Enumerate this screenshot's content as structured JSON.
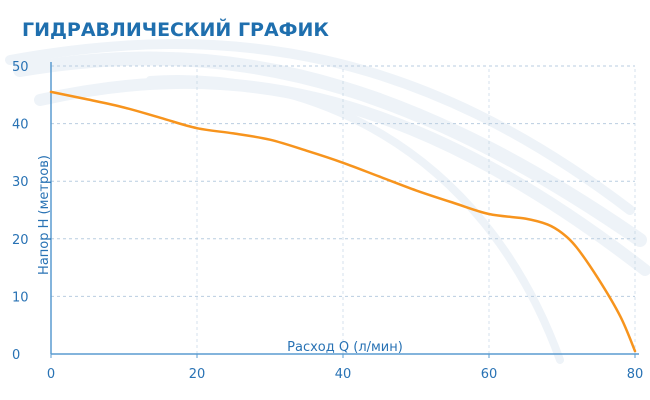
{
  "chart_data": {
    "type": "line",
    "title": "ГИДРАВЛИЧЕСКИЙ ГРАФИК",
    "xlabel": "Расход Q (л/мин)",
    "ylabel": "Напор H (метров)",
    "xlim": [
      0,
      80
    ],
    "ylim": [
      0,
      50
    ],
    "x_ticks": [
      0,
      20,
      40,
      60,
      80
    ],
    "y_ticks": [
      0,
      10,
      20,
      30,
      40,
      50
    ],
    "grid": "horizontal dashed",
    "series": [
      {
        "color": "#f7941d",
        "x": [
          0,
          5,
          10,
          15,
          20,
          25,
          30,
          35,
          40,
          45,
          50,
          55,
          60,
          65,
          68,
          70,
          72,
          75,
          78,
          80
        ],
        "y": [
          45.5,
          44.2,
          42.8,
          41.0,
          39.2,
          38.3,
          37.2,
          35.3,
          33.2,
          30.8,
          28.4,
          26.3,
          24.3,
          23.5,
          22.5,
          21.0,
          18.5,
          13.0,
          6.5,
          0.5
        ]
      }
    ]
  },
  "colors": {
    "title": "#1f6fae",
    "axis_text": "#2872b4",
    "axis_line": "#5a9bd0",
    "grid": "#b9cde0",
    "line": "#f7941d",
    "swoosh": "#eef3f8"
  }
}
